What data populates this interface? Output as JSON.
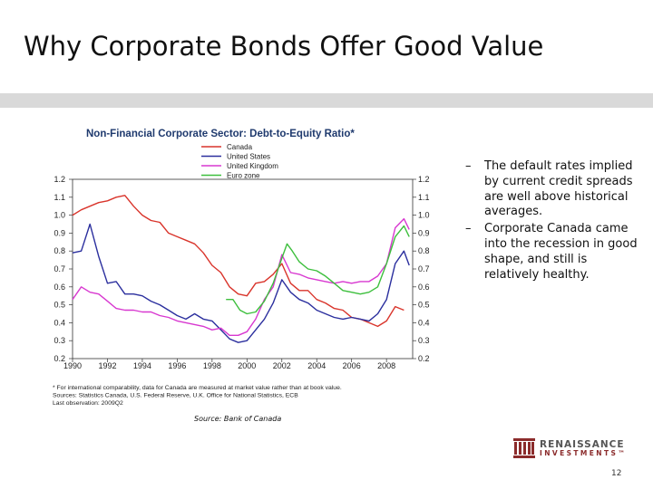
{
  "slide": {
    "title": "Why Corporate Bonds Offer Good Value",
    "page_number": "12",
    "source": "Source: Bank of Canada",
    "bullets": [
      "The default rates implied by current credit spreads are well above historical averages.",
      "Corporate Canada came into the recession in good shape, and still is relatively healthy."
    ],
    "logo": {
      "name": "RENAISSANCE",
      "sub": "INVESTMENTS™"
    }
  },
  "chart_data": {
    "type": "line",
    "title": "Non-Financial Corporate Sector: Debt-to-Equity Ratio*",
    "xlabel": "",
    "ylabel": "",
    "xlim": [
      1990,
      2009.5
    ],
    "ylim": [
      0.2,
      1.2
    ],
    "x_ticks": [
      "1990",
      "1992",
      "1994",
      "1996",
      "1998",
      "2000",
      "2002",
      "2004",
      "2006",
      "2008"
    ],
    "y_ticks": [
      "1.2",
      "1.1",
      "1.0",
      "0.9",
      "0.8",
      "0.7",
      "0.6",
      "0.5",
      "0.4",
      "0.3",
      "0.2"
    ],
    "grid": false,
    "legend_position": "top-left",
    "footnotes": [
      "* For international comparability, data for Canada are measured at market value rather than at book value.",
      "Sources: Statistics Canada, U.S. Federal Reserve, U.K. Office for National Statistics, ECB",
      "Last observation: 2009Q2"
    ],
    "series": [
      {
        "name": "Canada",
        "color": "#d9342b",
        "points": [
          [
            1990,
            1.0
          ],
          [
            1990.5,
            1.03
          ],
          [
            1991,
            1.05
          ],
          [
            1991.5,
            1.07
          ],
          [
            1992,
            1.08
          ],
          [
            1992.5,
            1.1
          ],
          [
            1993,
            1.11
          ],
          [
            1993.5,
            1.05
          ],
          [
            1994,
            1.0
          ],
          [
            1994.5,
            0.97
          ],
          [
            1995,
            0.96
          ],
          [
            1995.5,
            0.9
          ],
          [
            1996,
            0.88
          ],
          [
            1996.5,
            0.86
          ],
          [
            1997,
            0.84
          ],
          [
            1997.5,
            0.79
          ],
          [
            1998,
            0.72
          ],
          [
            1998.5,
            0.68
          ],
          [
            1999,
            0.6
          ],
          [
            1999.5,
            0.56
          ],
          [
            2000,
            0.55
          ],
          [
            2000.5,
            0.62
          ],
          [
            2001,
            0.63
          ],
          [
            2001.5,
            0.67
          ],
          [
            2002,
            0.73
          ],
          [
            2002.5,
            0.62
          ],
          [
            2003,
            0.58
          ],
          [
            2003.5,
            0.58
          ],
          [
            2004,
            0.53
          ],
          [
            2004.5,
            0.51
          ],
          [
            2005,
            0.48
          ],
          [
            2005.5,
            0.47
          ],
          [
            2006,
            0.43
          ],
          [
            2006.5,
            0.42
          ],
          [
            2007,
            0.4
          ],
          [
            2007.5,
            0.38
          ],
          [
            2008,
            0.41
          ],
          [
            2008.5,
            0.49
          ],
          [
            2009,
            0.47
          ]
        ]
      },
      {
        "name": "United States",
        "color": "#2b2f9e",
        "points": [
          [
            1990,
            0.79
          ],
          [
            1990.5,
            0.8
          ],
          [
            1991,
            0.95
          ],
          [
            1991.5,
            0.77
          ],
          [
            1992,
            0.62
          ],
          [
            1992.5,
            0.63
          ],
          [
            1993,
            0.56
          ],
          [
            1993.5,
            0.56
          ],
          [
            1994,
            0.55
          ],
          [
            1994.5,
            0.52
          ],
          [
            1995,
            0.5
          ],
          [
            1995.5,
            0.47
          ],
          [
            1996,
            0.44
          ],
          [
            1996.5,
            0.42
          ],
          [
            1997,
            0.45
          ],
          [
            1997.5,
            0.42
          ],
          [
            1998,
            0.41
          ],
          [
            1998.5,
            0.36
          ],
          [
            1999,
            0.31
          ],
          [
            1999.5,
            0.29
          ],
          [
            2000,
            0.3
          ],
          [
            2000.5,
            0.36
          ],
          [
            2001,
            0.42
          ],
          [
            2001.5,
            0.51
          ],
          [
            2002,
            0.64
          ],
          [
            2002.5,
            0.57
          ],
          [
            2003,
            0.53
          ],
          [
            2003.5,
            0.51
          ],
          [
            2004,
            0.47
          ],
          [
            2004.5,
            0.45
          ],
          [
            2005,
            0.43
          ],
          [
            2005.5,
            0.42
          ],
          [
            2006,
            0.43
          ],
          [
            2006.5,
            0.42
          ],
          [
            2007,
            0.41
          ],
          [
            2007.5,
            0.45
          ],
          [
            2008,
            0.53
          ],
          [
            2008.5,
            0.73
          ],
          [
            2009,
            0.8
          ],
          [
            2009.3,
            0.72
          ]
        ]
      },
      {
        "name": "United Kingdom",
        "color": "#d838d0",
        "points": [
          [
            1990,
            0.53
          ],
          [
            1990.5,
            0.6
          ],
          [
            1991,
            0.57
          ],
          [
            1991.5,
            0.56
          ],
          [
            1992,
            0.52
          ],
          [
            1992.5,
            0.48
          ],
          [
            1993,
            0.47
          ],
          [
            1993.5,
            0.47
          ],
          [
            1994,
            0.46
          ],
          [
            1994.5,
            0.46
          ],
          [
            1995,
            0.44
          ],
          [
            1995.5,
            0.43
          ],
          [
            1996,
            0.41
          ],
          [
            1996.5,
            0.4
          ],
          [
            1997,
            0.39
          ],
          [
            1997.5,
            0.38
          ],
          [
            1998,
            0.36
          ],
          [
            1998.5,
            0.37
          ],
          [
            1999,
            0.33
          ],
          [
            1999.5,
            0.33
          ],
          [
            2000,
            0.35
          ],
          [
            2000.5,
            0.42
          ],
          [
            2001,
            0.53
          ],
          [
            2001.5,
            0.6
          ],
          [
            2002,
            0.78
          ],
          [
            2002.5,
            0.68
          ],
          [
            2003,
            0.67
          ],
          [
            2003.5,
            0.65
          ],
          [
            2004,
            0.64
          ],
          [
            2004.5,
            0.63
          ],
          [
            2005,
            0.62
          ],
          [
            2005.5,
            0.63
          ],
          [
            2006,
            0.62
          ],
          [
            2006.5,
            0.63
          ],
          [
            2007,
            0.63
          ],
          [
            2007.5,
            0.66
          ],
          [
            2008,
            0.73
          ],
          [
            2008.5,
            0.93
          ],
          [
            2009,
            0.98
          ],
          [
            2009.3,
            0.92
          ]
        ]
      },
      {
        "name": "Euro zone",
        "color": "#3dbf3d",
        "points": [
          [
            1998.8,
            0.53
          ],
          [
            1999.2,
            0.53
          ],
          [
            1999.6,
            0.47
          ],
          [
            2000,
            0.45
          ],
          [
            2000.5,
            0.46
          ],
          [
            2001,
            0.52
          ],
          [
            2001.5,
            0.62
          ],
          [
            2002,
            0.76
          ],
          [
            2002.3,
            0.84
          ],
          [
            2002.6,
            0.8
          ],
          [
            2003,
            0.74
          ],
          [
            2003.5,
            0.7
          ],
          [
            2004,
            0.69
          ],
          [
            2004.5,
            0.66
          ],
          [
            2005,
            0.62
          ],
          [
            2005.5,
            0.58
          ],
          [
            2006,
            0.57
          ],
          [
            2006.5,
            0.56
          ],
          [
            2007,
            0.57
          ],
          [
            2007.5,
            0.6
          ],
          [
            2008,
            0.73
          ],
          [
            2008.5,
            0.88
          ],
          [
            2009,
            0.94
          ],
          [
            2009.3,
            0.88
          ]
        ]
      }
    ]
  }
}
